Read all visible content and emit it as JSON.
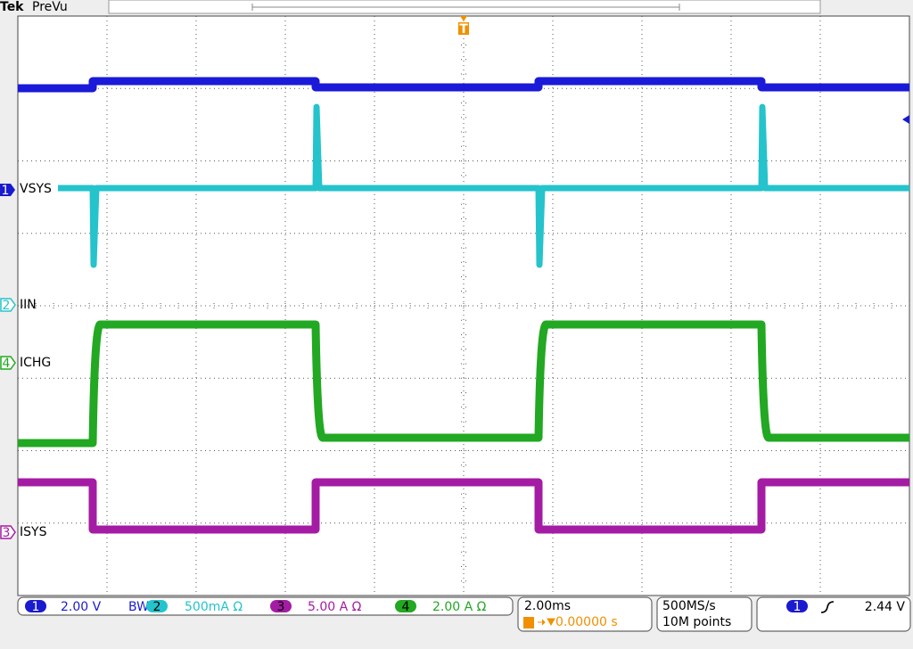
{
  "header": {
    "brand": "Tek",
    "mode": "PreVu",
    "trigger_marker": "T"
  },
  "channels": [
    {
      "number": "1",
      "label": "VSYS"
    },
    {
      "number": "2",
      "label": "IIN"
    },
    {
      "number": "4",
      "label": "ICHG"
    },
    {
      "number": "3",
      "label": "ISYS"
    }
  ],
  "status_bar": {
    "scales": [
      {
        "number": "1",
        "scale": "2.00 V",
        "bandwidth": "BW"
      },
      {
        "number": "2",
        "scale": "500mA Ω"
      },
      {
        "number": "3",
        "scale": "5.00 A Ω"
      },
      {
        "number": "4",
        "scale": "2.00 A Ω"
      }
    ],
    "timebase": "2.00ms",
    "trigger_position": "0.00000 s",
    "sample_rate": "500MS/s",
    "record_length": "10M points",
    "trigger": {
      "source": "1",
      "level": "2.44 V"
    }
  }
}
